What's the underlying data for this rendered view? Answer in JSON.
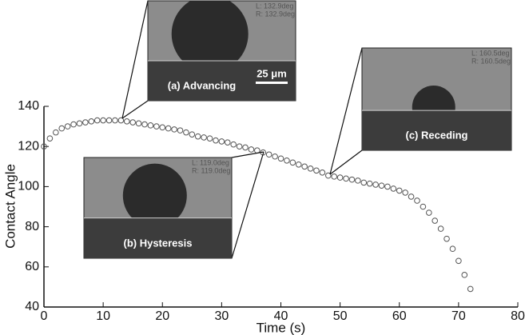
{
  "chart_data": {
    "type": "scatter",
    "xlabel": "Time (s)",
    "ylabel": "Contact Angle",
    "xlim": [
      0,
      80
    ],
    "ylim": [
      40,
      140
    ],
    "xticks": [
      0,
      10,
      20,
      30,
      40,
      50,
      60,
      70,
      80
    ],
    "yticks": [
      40,
      60,
      80,
      100,
      120,
      140
    ],
    "color": "#555555",
    "x": [
      0,
      1,
      2,
      3,
      4,
      5,
      6,
      7,
      8,
      9,
      10,
      11,
      12,
      13,
      14,
      15,
      16,
      17,
      18,
      19,
      20,
      21,
      22,
      23,
      24,
      25,
      26,
      27,
      28,
      29,
      30,
      31,
      32,
      33,
      34,
      35,
      36,
      37,
      38,
      39,
      40,
      41,
      42,
      43,
      44,
      45,
      46,
      47,
      48,
      49,
      50,
      51,
      52,
      53,
      54,
      55,
      56,
      57,
      58,
      59,
      60,
      61,
      62,
      63,
      64,
      65,
      66,
      67,
      68,
      69,
      70,
      71,
      72
    ],
    "values": [
      120,
      124,
      127,
      129,
      130,
      131,
      131.5,
      132,
      132.5,
      133,
      133,
      133,
      133,
      133,
      132.5,
      132,
      131.5,
      131,
      130.5,
      130,
      129.5,
      129,
      128.5,
      128,
      127,
      126,
      125,
      124.5,
      124,
      123,
      122.5,
      122,
      121,
      120,
      119.5,
      118.5,
      118,
      117,
      116,
      115,
      114,
      113,
      112,
      111,
      110,
      109,
      108,
      107,
      105.5,
      105,
      104.5,
      104,
      103.5,
      103,
      102,
      101.5,
      101,
      100.5,
      100,
      99,
      98,
      97,
      95,
      93,
      90,
      87,
      83,
      79,
      74,
      69,
      63,
      56,
      49
    ],
    "insets": [
      {
        "label": "(a) Advancing",
        "readout": [
          "L: 132.9deg",
          "R: 132.9deg"
        ],
        "scale_bar": "25 μm"
      },
      {
        "label": "(b) Hysteresis",
        "readout": [
          "L: 119.0deg",
          "R: 119.0deg"
        ]
      },
      {
        "label": "(c) Receding",
        "readout": [
          "L: 160.5deg",
          "R: 160.5deg"
        ]
      }
    ]
  }
}
